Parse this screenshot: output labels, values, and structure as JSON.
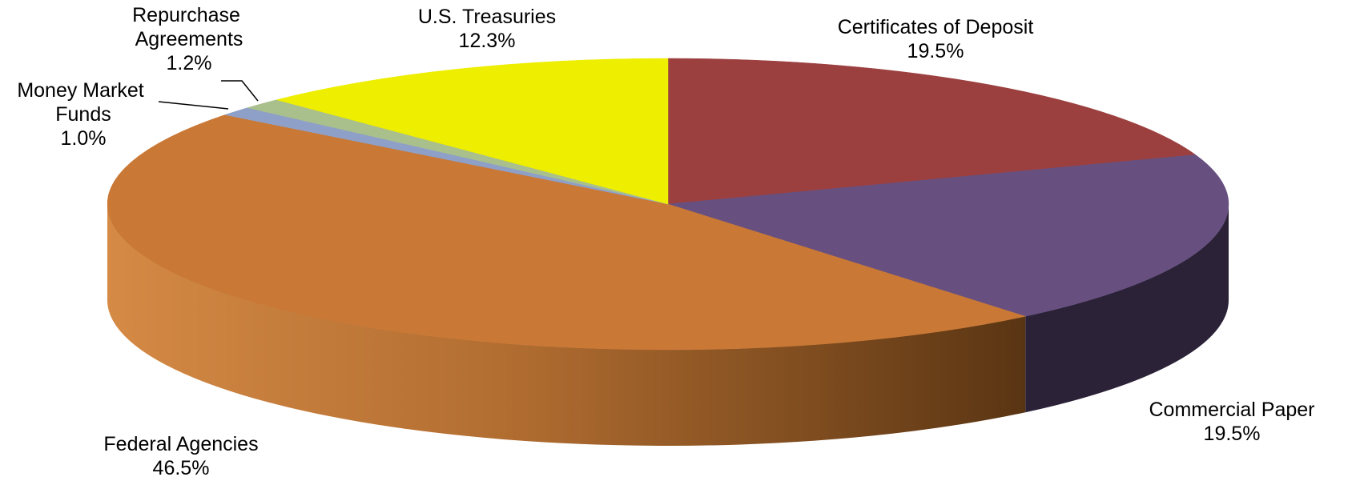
{
  "chart_data": {
    "type": "pie",
    "style": "3d",
    "legend": "none",
    "slices": [
      {
        "name": "Certificates of Deposit",
        "value": 19.5,
        "value_label": "19.5%",
        "color": "#9c3f3f",
        "side_color": "#5e2222"
      },
      {
        "name": "Commercial Paper",
        "value": 19.5,
        "value_label": "19.5%",
        "color": "#67507f",
        "side_color": "#2b2238"
      },
      {
        "name": "Federal Agencies",
        "value": 46.5,
        "value_label": "46.5%",
        "color": "#c97835",
        "side_color": "#b06c30"
      },
      {
        "name": "Money Market Funds",
        "value": 1.0,
        "value_label": "1.0%",
        "color": "#8ea0c8",
        "side_color": "#6f7fa3"
      },
      {
        "name": "Repurchase Agreements",
        "value": 1.2,
        "value_label": "1.2%",
        "color": "#a9bf8c",
        "side_color": "#84996c"
      },
      {
        "name": "U.S. Treasuries",
        "value": 12.3,
        "value_label": "12.3%",
        "color": "#eeee00",
        "side_color": "#b8b800"
      }
    ]
  }
}
